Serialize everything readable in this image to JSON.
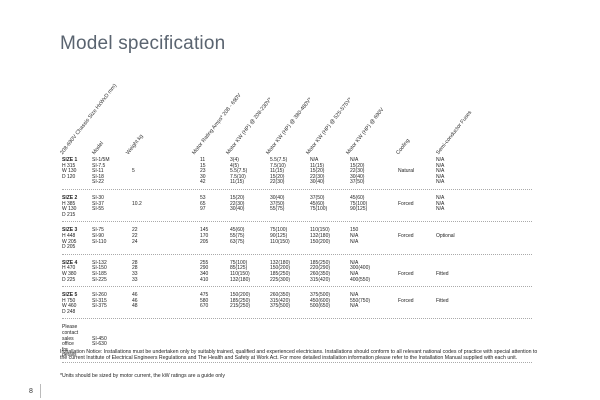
{
  "title": "Model specification",
  "headers": [
    "208-690V Chassis Size HxWxD mm)",
    "Model",
    "Weight kg",
    "Motor Rating Amps* 208 - 690V",
    "Motor KW (HP) @ 208-230V*",
    "Motor KW (HP) @ 380-480V*",
    "Motor KW (HP) @ 525-575V*",
    "Motor KW (HP) @ 690V",
    "Cooling",
    "Semi-conductor Fuses"
  ],
  "groups": [
    {
      "labels": [
        "SIZE 1",
        "H 315",
        "W 130",
        "D 120",
        ""
      ],
      "models": [
        "SI-1/5M",
        "SI-7.5",
        "SI-11",
        "SI-18",
        "SI-22"
      ],
      "weight": [
        "",
        "",
        "5",
        "",
        ""
      ],
      "amps": [
        "11",
        "15",
        "23",
        "30",
        "42"
      ],
      "kw230": [
        "3(4)",
        "4(5)",
        "5.5(7.5)",
        "7.5(10)",
        "11(15)"
      ],
      "kw380": [
        "5.5(7.5)",
        "7.5(10)",
        "11(15)",
        "15(20)",
        "22(30)"
      ],
      "kw525": [
        "N/A",
        "11(15)",
        "15(20)",
        "22(30)",
        "30(40)"
      ],
      "kw690": [
        "N/A",
        "15(20)",
        "22(30)",
        "30(40)",
        "37(50)"
      ],
      "cooling": [
        "",
        "",
        "Natural",
        "",
        ""
      ],
      "fuses": [
        "N/A",
        "N/A",
        "N/A",
        "N/A",
        "N/A"
      ]
    },
    {
      "labels": [
        "SIZE 2",
        "H 385",
        "W 130",
        "D 215"
      ],
      "models": [
        "SI-30",
        "SI-37",
        "SI-55"
      ],
      "weight": [
        "",
        "10.2",
        ""
      ],
      "amps": [
        "53",
        "65",
        "97"
      ],
      "kw230": [
        "15(20)",
        "22(30)",
        "30(40)"
      ],
      "kw380": [
        "30(40)",
        "37(50)",
        "55(75)"
      ],
      "kw525": [
        "37(50)",
        "45(60)",
        "75(100)"
      ],
      "kw690": [
        "45(60)",
        "75(100)",
        "90(125)"
      ],
      "cooling": [
        "",
        "Forced",
        ""
      ],
      "fuses": [
        "N/A",
        "N/A",
        "N/A"
      ]
    },
    {
      "labels": [
        "SIZE 3",
        "H 448",
        "W 205",
        "D 205"
      ],
      "models": [
        "SI-75",
        "SI-90",
        "SI-110"
      ],
      "weight": [
        "22",
        "22",
        "24"
      ],
      "amps": [
        "145",
        "170",
        "205"
      ],
      "kw230": [
        "45(60)",
        "55(75)",
        "63(75)"
      ],
      "kw380": [
        "75(100)",
        "90(125)",
        "110(150)"
      ],
      "kw525": [
        "110(150)",
        "132(180)",
        "150(200)"
      ],
      "kw690": [
        "150",
        "N/A",
        "N/A"
      ],
      "cooling": [
        "",
        "Forced",
        ""
      ],
      "fuses": [
        "",
        "Optional",
        ""
      ]
    },
    {
      "labels": [
        "SIZE 4",
        "H 470",
        "W 380",
        "D 225"
      ],
      "models": [
        "SI-132",
        "SI-150",
        "SI-185",
        "SI-225"
      ],
      "weight": [
        "28",
        "28",
        "33",
        "33"
      ],
      "amps": [
        "255",
        "290",
        "340",
        "410"
      ],
      "kw230": [
        "75(100)",
        "85(125)",
        "110(150)",
        "132(180)"
      ],
      "kw380": [
        "132(180)",
        "150(200)",
        "185(250)",
        "225(300)"
      ],
      "kw525": [
        "185(250)",
        "220(290)",
        "260(350)",
        "315(420)"
      ],
      "kw690": [
        "N/A",
        "300(400)",
        "N/A",
        "400(550)"
      ],
      "cooling": [
        "",
        "",
        "Forced",
        ""
      ],
      "fuses": [
        "",
        "",
        "Fitted",
        ""
      ]
    },
    {
      "labels": [
        "SIZE 5",
        "H 750",
        "W 460",
        "D 248"
      ],
      "models": [
        "SI-260",
        "SI-315",
        "SI-375"
      ],
      "weight": [
        "46",
        "46",
        "48"
      ],
      "amps": [
        "475",
        "580",
        "670"
      ],
      "kw230": [
        "150(200)",
        "185(250)",
        "215(250)"
      ],
      "kw380": [
        "260(350)",
        "315(420)",
        "375(500)"
      ],
      "kw525": [
        "375(500)",
        "450(600)",
        "500(650)"
      ],
      "kw690": [
        "N/A",
        "550(750)",
        "N/A"
      ],
      "cooling": [
        "",
        "Forced",
        ""
      ],
      "fuses": [
        "",
        "Fitted",
        ""
      ]
    },
    {
      "labels": [
        "Please",
        "contact",
        "sales",
        "office",
        "for",
        "details"
      ],
      "models": [
        "",
        "",
        "SI-450",
        "SI-630",
        "",
        ""
      ],
      "weight": [],
      "amps": [],
      "kw230": [],
      "kw380": [],
      "kw525": [],
      "kw690": [],
      "cooling": [],
      "fuses": []
    }
  ],
  "installation_notice": "Installation Notice: Installations must be undertaken only by suitably trained, qualified and experienced electricians. Installations should conform to all relevant national codes of practice with special attention to the current Institute of Electrical Engineers Regulations and The Health and Safety at Work Act. For more detailed installation information please refer to the Installation Manual supplied with each unit.",
  "footnote": "*Units should be sized by motor current, the kW ratings are a guide only",
  "page_number": "8"
}
